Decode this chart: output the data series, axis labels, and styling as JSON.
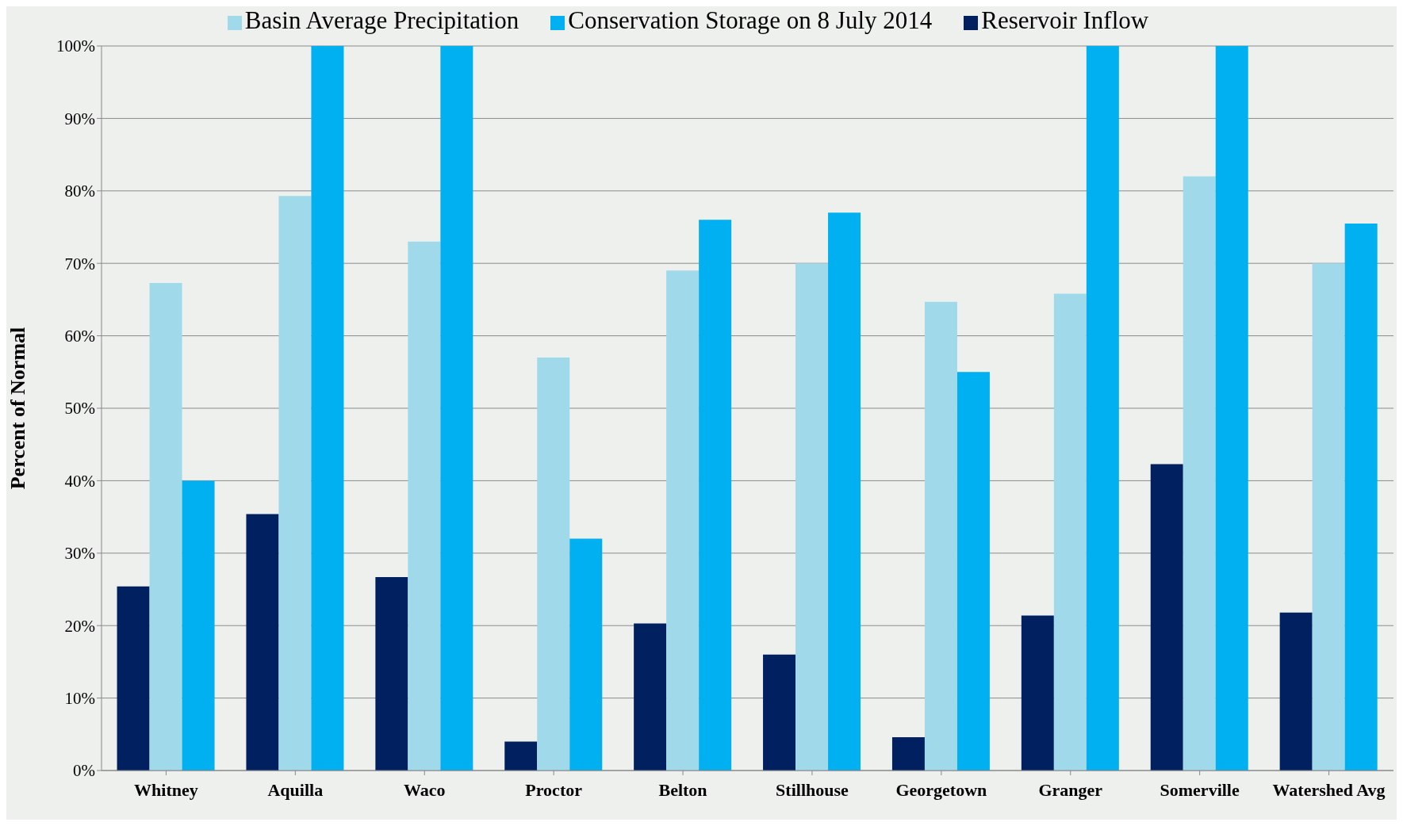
{
  "chart_data": {
    "type": "bar",
    "ylabel": "Percent of  Normal",
    "categories": [
      "Whitney",
      "Aquilla",
      "Waco",
      "Proctor",
      "Belton",
      "Stillhouse",
      "Georgetown",
      "Granger",
      "Somerville",
      "Watershed Avg"
    ],
    "series": [
      {
        "name": "Reservoir Inflow",
        "color": "#002060",
        "values": [
          25.4,
          35.4,
          26.7,
          4,
          20.3,
          16,
          4.6,
          21.4,
          42.3,
          21.8
        ]
      },
      {
        "name": "Basin Average Precipitation",
        "color": "#9fd9ea",
        "values": [
          67.3,
          79.3,
          73,
          57,
          69,
          70,
          64.7,
          65.8,
          82,
          70
        ]
      },
      {
        "name": "Conservation Storage on 8 July 2014",
        "color": "#00b0f0",
        "values": [
          40,
          100,
          100,
          32,
          76,
          77,
          55,
          100,
          100,
          75.5
        ]
      }
    ],
    "ylim": [
      0,
      100
    ],
    "yticks": [
      {
        "value": 0,
        "label": "0%"
      },
      {
        "value": 10,
        "label": "10%"
      },
      {
        "value": 20,
        "label": "20%"
      },
      {
        "value": 30,
        "label": "30%"
      },
      {
        "value": 40,
        "label": "40%"
      },
      {
        "value": 50,
        "label": "50%"
      },
      {
        "value": 60,
        "label": "60%"
      },
      {
        "value": 70,
        "label": "70%"
      },
      {
        "value": 80,
        "label": "80%"
      },
      {
        "value": 90,
        "label": "90%"
      },
      {
        "value": 100,
        "label": "100%"
      }
    ],
    "grid": "y",
    "legend": "top"
  }
}
